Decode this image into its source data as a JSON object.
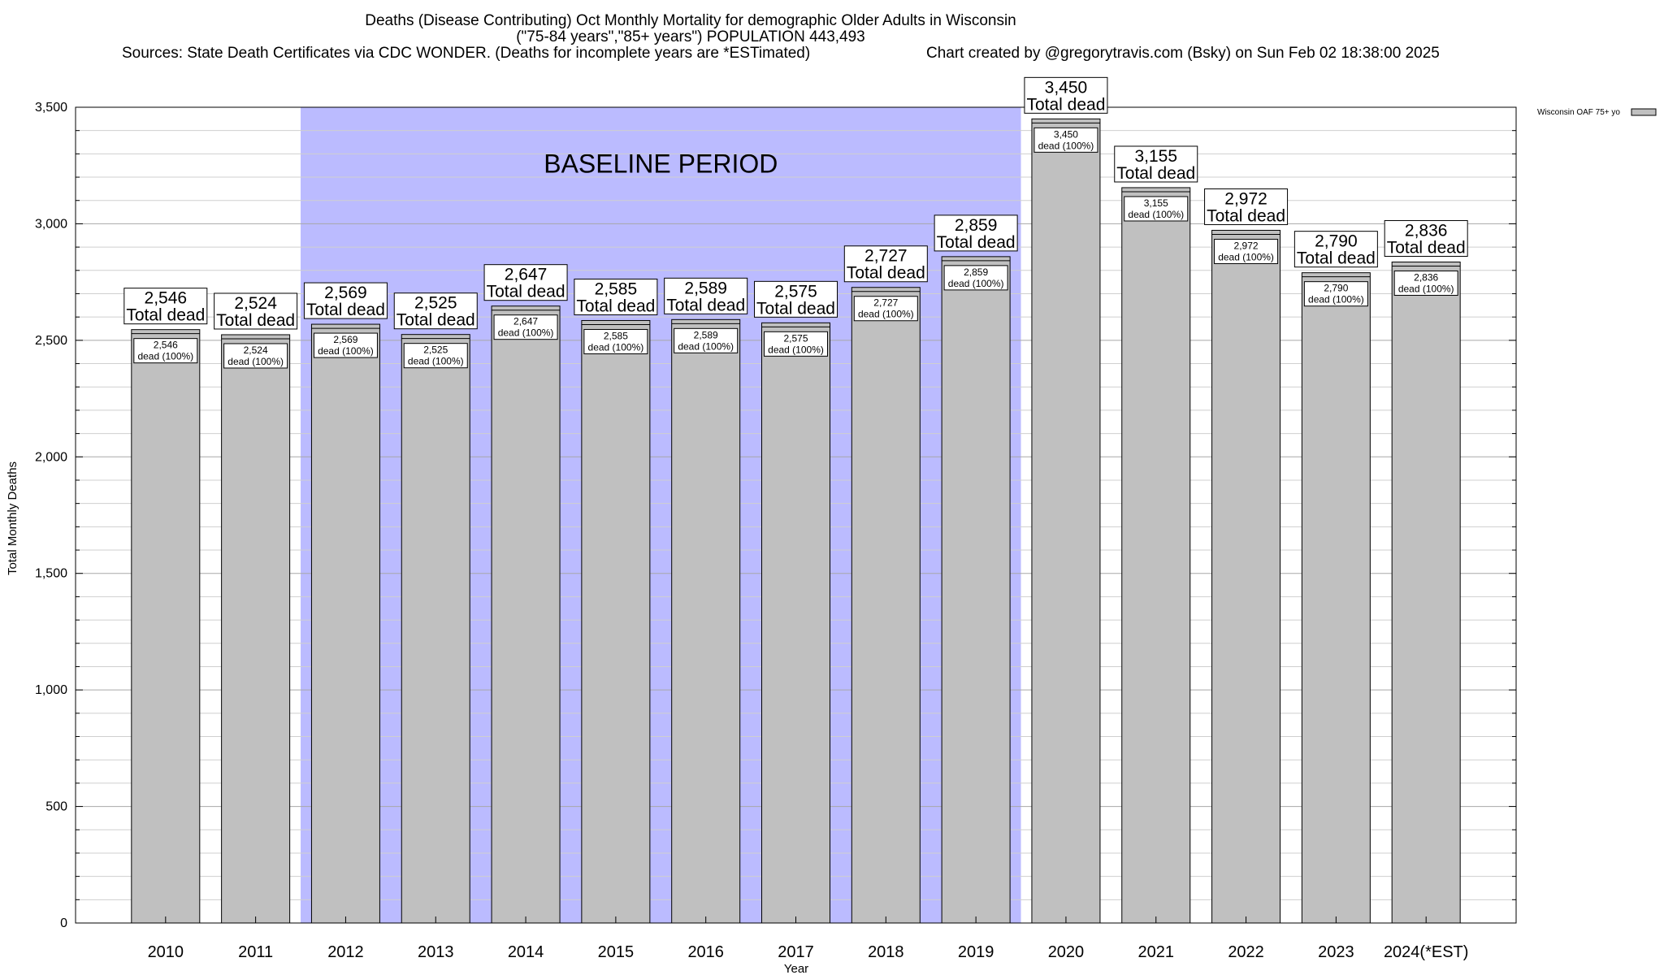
{
  "chart_data": {
    "type": "bar",
    "title_lines": [
      "Deaths (Disease Contributing) Oct Monthly Mortality for demographic Older Adults in Wisconsin",
      "(\"75-84 years\",\"85+ years\") POPULATION 443,493"
    ],
    "sources": "Sources: State Death Certificates via CDC WONDER. (Deaths for incomplete years are *ESTimated)",
    "credit": "Chart created by @gregorytravis.com (Bsky) on Sun Feb 02 18:38:00 2025",
    "xlabel": "Year",
    "ylabel": "Total Monthly Deaths",
    "ylim": [
      0,
      3500
    ],
    "yticks": [
      0,
      500,
      1000,
      1500,
      2000,
      2500,
      3000,
      3500
    ],
    "ytick_labels": [
      "0",
      "500",
      "1,000",
      "1,500",
      "2,000",
      "2,500",
      "3,000",
      "3,500"
    ],
    "grid": true,
    "legend_position": "top-right",
    "categories": [
      "2010",
      "2011",
      "2012",
      "2013",
      "2014",
      "2015",
      "2016",
      "2017",
      "2018",
      "2019",
      "2020",
      "2021",
      "2022",
      "2023",
      "2024(*EST)"
    ],
    "series": [
      {
        "name": "Wisconsin OAF 75+ yo",
        "color": "#c0c0c0",
        "values": [
          2546,
          2524,
          2569,
          2525,
          2647,
          2585,
          2589,
          2575,
          2727,
          2859,
          3450,
          3155,
          2972,
          2790,
          2836
        ]
      }
    ],
    "value_labels": [
      "2,546",
      "2,524",
      "2,569",
      "2,525",
      "2,647",
      "2,585",
      "2,589",
      "2,575",
      "2,727",
      "2,859",
      "3,450",
      "3,155",
      "2,972",
      "2,790",
      "2,836"
    ],
    "total_label_suffix": "Total dead",
    "inner_label_suffix": "dead (100%)",
    "baseline": {
      "label": "BASELINE PERIOD",
      "start_category": "2012",
      "end_category": "2019",
      "color": "#bbbbff"
    }
  }
}
